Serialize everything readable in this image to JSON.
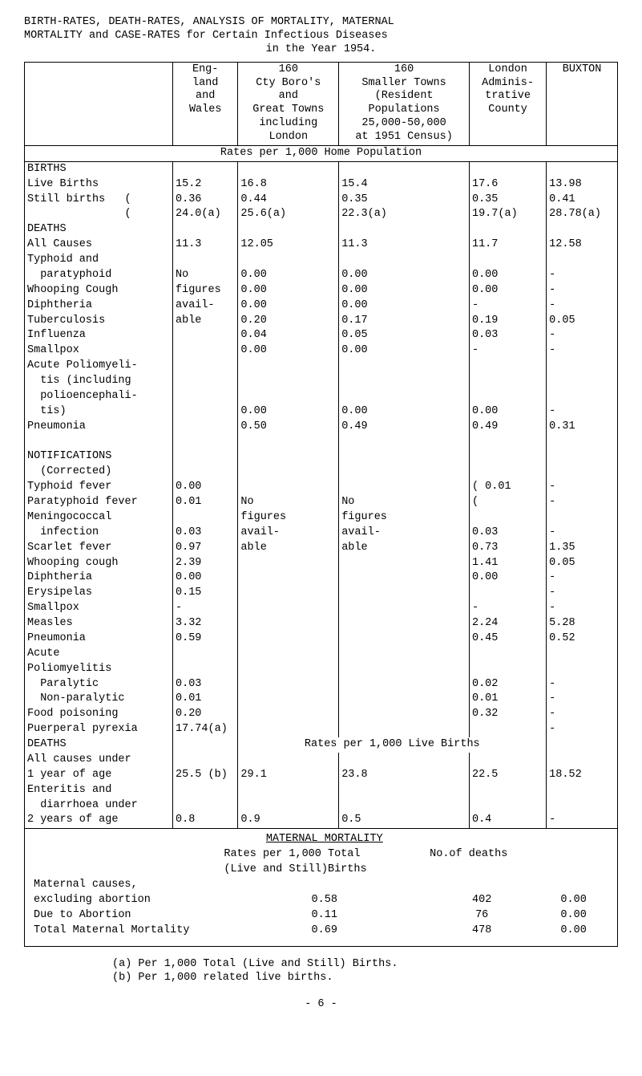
{
  "title": "BIRTH-RATES, DEATH-RATES, ANALYSIS OF MORTALITY, MATERNAL MORTALITY and CASE-RATES for Certain Infectious Diseases in the Year 1954.",
  "columns": {
    "c1": "Eng-\nland\nand\nWales",
    "c2": "160\nCty Boro's\nand\nGreat Towns\nincluding\nLondon",
    "c3": "160\nSmaller Towns\n(Resident\nPopulations\n25,000-50,000\nat 1951 Census)",
    "c4": "London\nAdminis-\ntrative\nCounty",
    "c5": "BUXTON"
  },
  "section1": "Rates per 1,000 Home Population",
  "rows": [
    {
      "l": "BIRTHS",
      "c1": "",
      "c2": "",
      "c3": "",
      "c4": "",
      "c5": ""
    },
    {
      "l": "Live Births",
      "c1": "15.2",
      "c2": "16.8",
      "c3": "15.4",
      "c4": "17.6",
      "c5": "13.98"
    },
    {
      "l": "Still births   (",
      "c1": "0.36",
      "c2": "0.44",
      "c3": "0.35",
      "c4": "0.35",
      "c5": "0.41"
    },
    {
      "l": "               (",
      "c1": "24.0(a)",
      "c2": "25.6(a)",
      "c3": "22.3(a)",
      "c4": "19.7(a)",
      "c5": "28.78(a)"
    },
    {
      "l": "DEATHS",
      "c1": "",
      "c2": "",
      "c3": "",
      "c4": "",
      "c5": ""
    },
    {
      "l": "All Causes",
      "c1": "11.3",
      "c2": "12.05",
      "c3": "11.3",
      "c4": "11.7",
      "c5": "12.58"
    },
    {
      "l": "Typhoid and",
      "c1": "",
      "c2": "",
      "c3": "",
      "c4": "",
      "c5": ""
    },
    {
      "l": "  paratyphoid",
      "c1": "No",
      "c2": "0.00",
      "c3": "0.00",
      "c4": "0.00",
      "c5": "-"
    },
    {
      "l": "Whooping Cough",
      "c1": "figures",
      "c2": "0.00",
      "c3": "0.00",
      "c4": "0.00",
      "c5": "-"
    },
    {
      "l": "Diphtheria",
      "c1": "avail-",
      "c2": "0.00",
      "c3": "0.00",
      "c4": "-",
      "c5": "-"
    },
    {
      "l": "Tuberculosis",
      "c1": "able",
      "c2": "0.20",
      "c3": "0.17",
      "c4": "0.19",
      "c5": "0.05"
    },
    {
      "l": "Influenza",
      "c1": "",
      "c2": "0.04",
      "c3": "0.05",
      "c4": "0.03",
      "c5": "-"
    },
    {
      "l": "Smallpox",
      "c1": "",
      "c2": "0.00",
      "c3": "0.00",
      "c4": "-",
      "c5": "-"
    },
    {
      "l": "Acute Poliomyeli-",
      "c1": "",
      "c2": "",
      "c3": "",
      "c4": "",
      "c5": ""
    },
    {
      "l": "  tis (including",
      "c1": "",
      "c2": "",
      "c3": "",
      "c4": "",
      "c5": ""
    },
    {
      "l": "  polioencephali-",
      "c1": "",
      "c2": "",
      "c3": "",
      "c4": "",
      "c5": ""
    },
    {
      "l": "  tis)",
      "c1": "",
      "c2": "0.00",
      "c3": "0.00",
      "c4": "0.00",
      "c5": "-"
    },
    {
      "l": "Pneumonia",
      "c1": "",
      "c2": "0.50",
      "c3": "0.49",
      "c4": "0.49",
      "c5": "0.31"
    },
    {
      "l": " ",
      "c1": "",
      "c2": "",
      "c3": "",
      "c4": "",
      "c5": ""
    },
    {
      "l": "NOTIFICATIONS",
      "c1": "",
      "c2": "",
      "c3": "",
      "c4": "",
      "c5": ""
    },
    {
      "l": "  (Corrected)",
      "c1": "",
      "c2": "",
      "c3": "",
      "c4": "",
      "c5": ""
    },
    {
      "l": "Typhoid fever",
      "c1": "0.00",
      "c2": "",
      "c3": "",
      "c4": "( 0.01",
      "c5": "-"
    },
    {
      "l": "Paratyphoid fever",
      "c1": "0.01",
      "c2": "No",
      "c3": "No",
      "c4": "(",
      "c5": "-"
    },
    {
      "l": "Meningococcal",
      "c1": "",
      "c2": "figures",
      "c3": "figures",
      "c4": "",
      "c5": ""
    },
    {
      "l": "  infection",
      "c1": "0.03",
      "c2": "avail-",
      "c3": "avail-",
      "c4": "0.03",
      "c5": "-"
    },
    {
      "l": "Scarlet fever",
      "c1": "0.97",
      "c2": "able",
      "c3": "able",
      "c4": "0.73",
      "c5": "1.35"
    },
    {
      "l": "Whooping cough",
      "c1": "2.39",
      "c2": "",
      "c3": "",
      "c4": "1.41",
      "c5": "0.05"
    },
    {
      "l": "Diphtheria",
      "c1": "0.00",
      "c2": "",
      "c3": "",
      "c4": "0.00",
      "c5": "-"
    },
    {
      "l": "Erysipelas",
      "c1": "0.15",
      "c2": "",
      "c3": "",
      "c4": "",
      "c5": "-"
    },
    {
      "l": "Smallpox",
      "c1": "-",
      "c2": "",
      "c3": "",
      "c4": "-",
      "c5": "-"
    },
    {
      "l": "Measles",
      "c1": "3.32",
      "c2": "",
      "c3": "",
      "c4": "2.24",
      "c5": "5.28"
    },
    {
      "l": "Pneumonia",
      "c1": "0.59",
      "c2": "",
      "c3": "",
      "c4": "0.45",
      "c5": "0.52"
    },
    {
      "l": "Acute",
      "c1": "",
      "c2": "",
      "c3": "",
      "c4": "",
      "c5": ""
    },
    {
      "l": "Poliomyelitis",
      "c1": "",
      "c2": "",
      "c3": "",
      "c4": "",
      "c5": ""
    },
    {
      "l": "  Paralytic",
      "c1": "0.03",
      "c2": "",
      "c3": "",
      "c4": "0.02",
      "c5": "-"
    },
    {
      "l": "  Non-paralytic",
      "c1": "0.01",
      "c2": "",
      "c3": "",
      "c4": "0.01",
      "c5": "-"
    },
    {
      "l": "Food poisoning",
      "c1": "0.20",
      "c2": "",
      "c3": "",
      "c4": "0.32",
      "c5": "-"
    },
    {
      "l": "Puerperal pyrexia",
      "c1": "17.74(a)",
      "c2": "",
      "c3": "",
      "c4": "",
      "c5": "-"
    }
  ],
  "section2": "Rates per 1,000 Live Births",
  "rows2": [
    {
      "l": "DEATHS",
      "c1": "",
      "c2": "",
      "c3": "",
      "c4": "",
      "c5": ""
    },
    {
      "l": "All causes under",
      "c1": "",
      "c2": "",
      "c3": "",
      "c4": "",
      "c5": ""
    },
    {
      "l": "1 year of age",
      "c1": "25.5 (b)",
      "c2": "29.1",
      "c3": "23.8",
      "c4": "22.5",
      "c5": "18.52"
    },
    {
      "l": "Enteritis and",
      "c1": "",
      "c2": "",
      "c3": "",
      "c4": "",
      "c5": ""
    },
    {
      "l": "  diarrhoea under",
      "c1": "",
      "c2": "",
      "c3": "",
      "c4": "",
      "c5": ""
    },
    {
      "l": "2 years of age",
      "c1": "0.8",
      "c2": "0.9",
      "c3": "0.5",
      "c4": "0.4",
      "c5": "-"
    }
  ],
  "maternal": {
    "title": "MATERNAL MORTALITY",
    "sub1": "Rates per 1,000 Total",
    "sub2": "(Live and Still)Births",
    "sub3": "No.of deaths",
    "rows": [
      {
        "l": "Maternal causes,",
        "r": "",
        "n": "",
        "b": ""
      },
      {
        "l": "excluding abortion",
        "r": "0.58",
        "n": "402",
        "b": "0.00"
      },
      {
        "l": "Due to Abortion",
        "r": "0.11",
        "n": "76",
        "b": "0.00"
      },
      {
        "l": "Total Maternal Mortality",
        "r": "0.69",
        "n": "478",
        "b": "0.00"
      }
    ]
  },
  "footnote_a": "(a) Per 1,000 Total (Live and Still) Births.",
  "footnote_b": "(b) Per 1,000 related live births.",
  "pagenum": "- 6 -"
}
